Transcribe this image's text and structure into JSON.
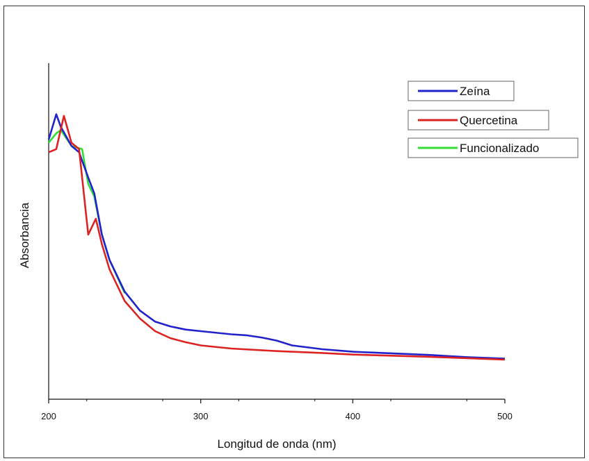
{
  "chart_data": {
    "type": "line",
    "xlabel": "Longitud de onda (nm)",
    "ylabel": "Absorbancia",
    "xlim": [
      200,
      500
    ],
    "ylim": [
      0,
      1
    ],
    "x_ticks": [
      200,
      300,
      400,
      500
    ],
    "x_tick_labels": [
      "200",
      "300",
      "400",
      "500"
    ],
    "grid": false,
    "legend_position": "top-right",
    "series": [
      {
        "name": "Zeína",
        "color": "#2222cc",
        "points": [
          [
            200,
            0.82
          ],
          [
            205,
            0.9
          ],
          [
            208,
            0.86
          ],
          [
            215,
            0.8
          ],
          [
            220,
            0.78
          ],
          [
            226,
            0.7
          ],
          [
            230,
            0.65
          ],
          [
            235,
            0.52
          ],
          [
            240,
            0.44
          ],
          [
            250,
            0.34
          ],
          [
            260,
            0.28
          ],
          [
            270,
            0.245
          ],
          [
            280,
            0.23
          ],
          [
            290,
            0.22
          ],
          [
            300,
            0.215
          ],
          [
            320,
            0.205
          ],
          [
            330,
            0.202
          ],
          [
            340,
            0.195
          ],
          [
            350,
            0.185
          ],
          [
            360,
            0.17
          ],
          [
            380,
            0.158
          ],
          [
            400,
            0.15
          ],
          [
            420,
            0.146
          ],
          [
            450,
            0.14
          ],
          [
            475,
            0.133
          ],
          [
            500,
            0.128
          ]
        ]
      },
      {
        "name": "Quercetina",
        "color": "#dd2222",
        "points": [
          [
            200,
            0.78
          ],
          [
            205,
            0.79
          ],
          [
            210,
            0.895
          ],
          [
            215,
            0.81
          ],
          [
            220,
            0.79
          ],
          [
            226,
            0.52
          ],
          [
            231,
            0.57
          ],
          [
            235,
            0.49
          ],
          [
            240,
            0.41
          ],
          [
            250,
            0.31
          ],
          [
            260,
            0.255
          ],
          [
            270,
            0.215
          ],
          [
            280,
            0.193
          ],
          [
            290,
            0.18
          ],
          [
            300,
            0.17
          ],
          [
            320,
            0.16
          ],
          [
            350,
            0.152
          ],
          [
            380,
            0.146
          ],
          [
            400,
            0.141
          ],
          [
            450,
            0.134
          ],
          [
            500,
            0.125
          ]
        ]
      },
      {
        "name": "Funcionalizado",
        "color": "#33dd33",
        "points": [
          [
            200,
            0.81
          ],
          [
            205,
            0.84
          ],
          [
            208,
            0.85
          ],
          [
            215,
            0.8
          ],
          [
            222,
            0.79
          ],
          [
            226,
            0.68
          ],
          [
            230,
            0.64
          ],
          [
            235,
            0.52
          ],
          [
            240,
            0.44
          ],
          [
            250,
            0.335
          ]
        ]
      }
    ]
  }
}
